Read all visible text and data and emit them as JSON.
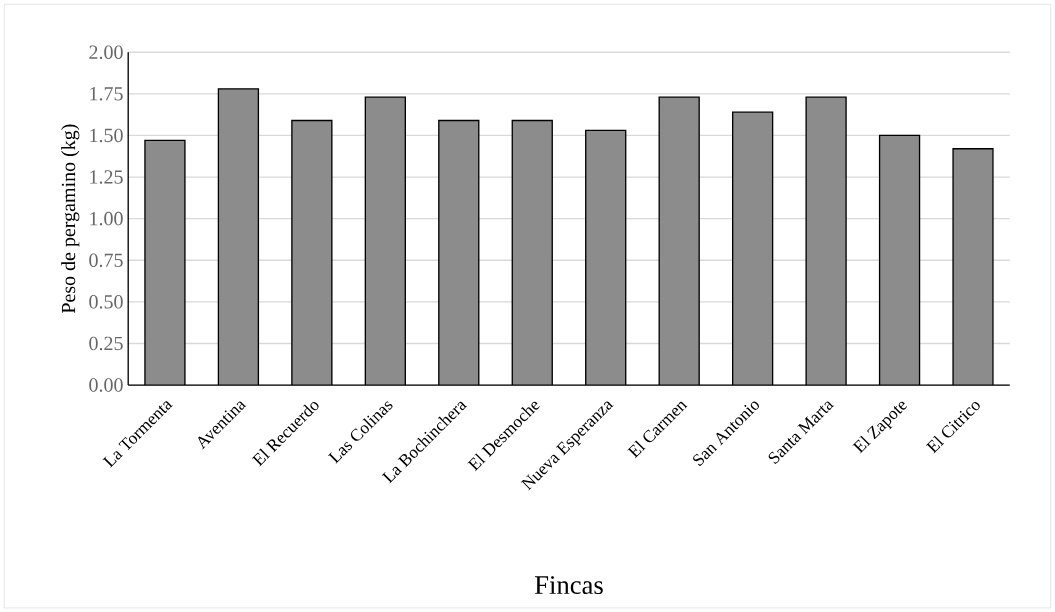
{
  "chart_data": {
    "type": "bar",
    "xlabel": "Fincas",
    "ylabel": "Peso de pergamino (kg)",
    "categories": [
      "La Tormenta",
      "Aventina",
      "El Recuerdo",
      "Las Colinas",
      "La Bochinchera",
      "El Desmoche",
      "Nueva Esperanza",
      "El Carmen",
      "San Antonio",
      "Santa Marta",
      "El Zapote",
      "El Citrico"
    ],
    "values": [
      1.47,
      1.78,
      1.59,
      1.73,
      1.59,
      1.59,
      1.53,
      1.73,
      1.64,
      1.73,
      1.5,
      1.42
    ],
    "color": "#8c8c8c",
    "ylim": [
      0,
      2
    ],
    "yticks": [
      {
        "value": 0,
        "label": "0.00"
      },
      {
        "value": 0.25,
        "label": "0.25"
      },
      {
        "value": 0.5,
        "label": "0.50"
      },
      {
        "value": 0.75,
        "label": "0.75"
      },
      {
        "value": 1,
        "label": "1.00"
      },
      {
        "value": 1.25,
        "label": "1.25"
      },
      {
        "value": 1.5,
        "label": "1.50"
      },
      {
        "value": 1.75,
        "label": "1.75"
      },
      {
        "value": 2,
        "label": "2.00"
      }
    ],
    "grid": "y"
  }
}
